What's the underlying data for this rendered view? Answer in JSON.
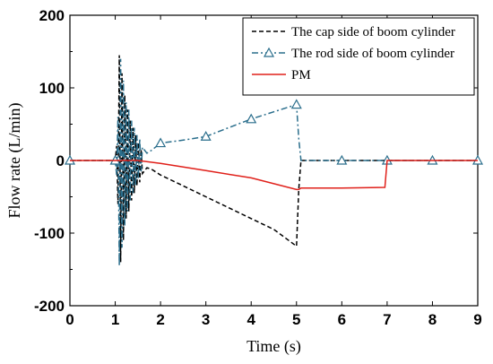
{
  "chart_data": {
    "type": "line",
    "xlabel": "Time (s)",
    "ylabel": "Flow rate (L/min)",
    "xlim": [
      0,
      9
    ],
    "ylim": [
      -200,
      200
    ],
    "x_ticks": [
      "0",
      "1",
      "2",
      "3",
      "4",
      "5",
      "6",
      "7",
      "8",
      "9"
    ],
    "y_ticks": [
      "200",
      "100",
      "0",
      "-100",
      "-200"
    ],
    "grid": false,
    "legend_position": "top-right",
    "series": [
      {
        "name": "The cap side of boom cylinder",
        "color": "#000000",
        "dash": "dashed",
        "marker": "none",
        "x": [
          0,
          1.0,
          1.03,
          1.06,
          1.09,
          1.12,
          1.15,
          1.18,
          1.21,
          1.24,
          1.27,
          1.3,
          1.33,
          1.36,
          1.39,
          1.42,
          1.45,
          1.48,
          1.51,
          1.54,
          1.57,
          1.6,
          1.7,
          1.8,
          2.0,
          2.5,
          3.0,
          3.5,
          4.0,
          4.5,
          5.0,
          5.05,
          5.1,
          6.0,
          7.0,
          8.0,
          9.0
        ],
        "y": [
          0,
          0,
          20,
          -60,
          145,
          -140,
          120,
          -110,
          90,
          -80,
          70,
          -70,
          55,
          -55,
          45,
          -45,
          35,
          -35,
          25,
          -30,
          15,
          -18,
          -10,
          -12,
          -20,
          -35,
          -50,
          -65,
          -80,
          -95,
          -118,
          -40,
          0,
          0,
          0,
          0,
          0
        ]
      },
      {
        "name": "The rod side of boom cylinder",
        "color": "#2a6e8c",
        "dash": "dashdot",
        "marker": "triangle",
        "x": [
          0,
          1.0,
          1.03,
          1.06,
          1.09,
          1.12,
          1.15,
          1.18,
          1.21,
          1.24,
          1.27,
          1.3,
          1.33,
          1.36,
          1.39,
          1.42,
          1.45,
          1.48,
          1.51,
          1.54,
          1.57,
          1.6,
          1.7,
          1.8,
          2.0,
          2.5,
          3.0,
          3.5,
          4.0,
          4.5,
          5.0,
          5.05,
          5.1,
          6.0,
          7.0,
          8.0,
          9.0
        ],
        "y": [
          0,
          0,
          -20,
          60,
          -145,
          140,
          -120,
          110,
          -90,
          80,
          -70,
          70,
          -55,
          55,
          -45,
          45,
          -35,
          35,
          -25,
          30,
          -15,
          18,
          10,
          14,
          24,
          28,
          33,
          45,
          57,
          67,
          77,
          30,
          0,
          0,
          0,
          0,
          0
        ],
        "marker_x": [
          0,
          1,
          2,
          3,
          4,
          5,
          6,
          7,
          8,
          9
        ]
      },
      {
        "name": "PM",
        "color": "#e0201a",
        "dash": "solid",
        "marker": "none",
        "x": [
          0,
          1.0,
          1.5,
          2.0,
          3.0,
          4.0,
          5.0,
          5.05,
          5.1,
          6.0,
          6.95,
          7.0,
          8.0,
          9.0
        ],
        "y": [
          0,
          0,
          0,
          -4,
          -14,
          -24,
          -40,
          -40,
          -38,
          -38,
          -37,
          0,
          0,
          0
        ]
      }
    ]
  }
}
